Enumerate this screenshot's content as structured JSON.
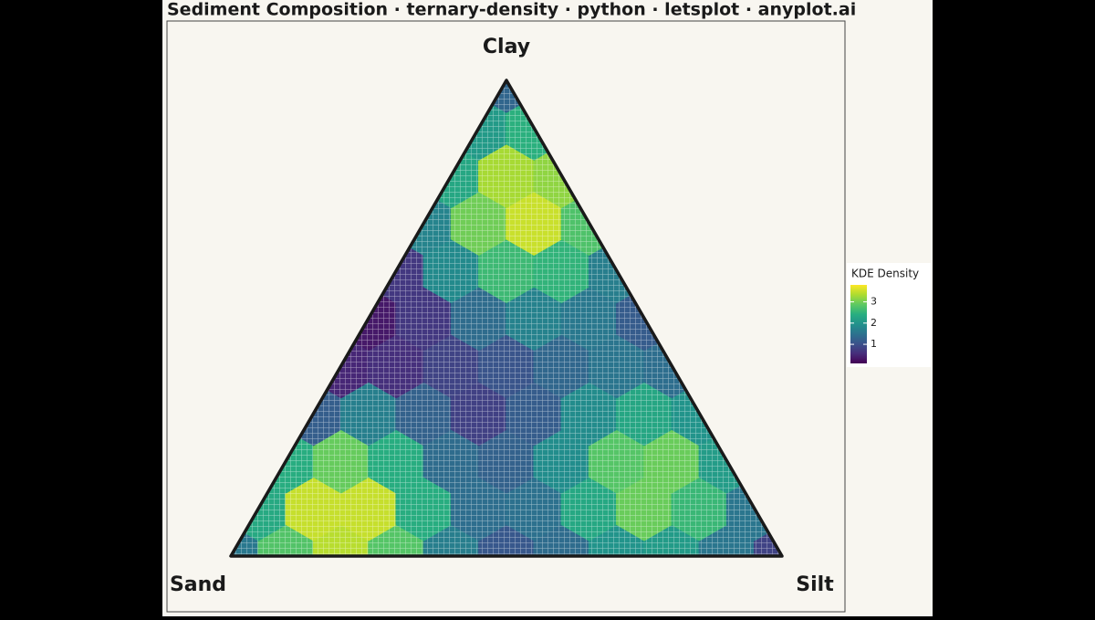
{
  "chart_data": {
    "type": "ternary-density",
    "title": "Sediment Composition · ternary-density · python · letsplot · anyplot.ai",
    "axes": {
      "top": "Clay",
      "left": "Sand",
      "right": "Silt"
    },
    "legend_title": "KDE Density",
    "colorlim": [
      0.1,
      3.8
    ],
    "colorticks": [
      1,
      2,
      3
    ],
    "colorscale": [
      "#440154",
      "#472d7b",
      "#3b528b",
      "#2c728e",
      "#21918c",
      "#28ae80",
      "#5ec962",
      "#addc30",
      "#fde725"
    ],
    "grid": {
      "clay": [
        0,
        0,
        0,
        0,
        0,
        0,
        0,
        0,
        0,
        0,
        0,
        0.1,
        0.1,
        0.1,
        0.1,
        0.1,
        0.1,
        0.1,
        0.1,
        0.1,
        0.1,
        0.2,
        0.2,
        0.2,
        0.2,
        0.2,
        0.2,
        0.2,
        0.2,
        0.2,
        0.3,
        0.3,
        0.3,
        0.3,
        0.3,
        0.3,
        0.3,
        0.3,
        0.4,
        0.4,
        0.4,
        0.4,
        0.4,
        0.4,
        0.4,
        0.5,
        0.5,
        0.5,
        0.5,
        0.5,
        0.5,
        0.6,
        0.6,
        0.6,
        0.6,
        0.6,
        0.7,
        0.7,
        0.7,
        0.7,
        0.8,
        0.8,
        0.8,
        0.9,
        0.9,
        1
      ],
      "silt": [
        0,
        0.1,
        0.2,
        0.3,
        0.4,
        0.5,
        0.6,
        0.7,
        0.8,
        0.9,
        1,
        0,
        0.1,
        0.2,
        0.3,
        0.4,
        0.5,
        0.6,
        0.7,
        0.8,
        0.9,
        0,
        0.1,
        0.2,
        0.3,
        0.4,
        0.5,
        0.6,
        0.7,
        0.8,
        0,
        0.1,
        0.2,
        0.3,
        0.4,
        0.5,
        0.6,
        0.7,
        0,
        0.1,
        0.2,
        0.3,
        0.4,
        0.5,
        0.6,
        0,
        0.1,
        0.2,
        0.3,
        0.4,
        0.5,
        0,
        0.1,
        0.2,
        0.3,
        0.4,
        0,
        0.1,
        0.2,
        0.3,
        0,
        0.1,
        0.2,
        0,
        0.1,
        0
      ],
      "density": [
        1.57,
        2.78,
        3.4,
        2.8,
        1.66,
        1.11,
        1.4,
        2.0,
        2.11,
        1.54,
        0.84,
        2.34,
        3.48,
        3.48,
        2.4,
        1.43,
        1.47,
        2.31,
        2.94,
        2.57,
        1.54,
        2.4,
        2.92,
        2.4,
        1.4,
        1.25,
        1.89,
        2.8,
        2.94,
        2.12,
        1.2,
        1.68,
        1.25,
        0.81,
        1.18,
        1.88,
        2.28,
        1.99,
        0.5,
        0.6,
        0.85,
        1.07,
        1.33,
        1.53,
        1.43,
        0.35,
        0.7,
        1.4,
        1.72,
        1.57,
        1.17,
        0.7,
        1.85,
        2.6,
        2.5,
        1.67,
        1.75,
        2.98,
        3.5,
        2.75,
        2.3,
        3.3,
        3.17,
        2.09,
        2.44,
        1.32
      ]
    }
  }
}
